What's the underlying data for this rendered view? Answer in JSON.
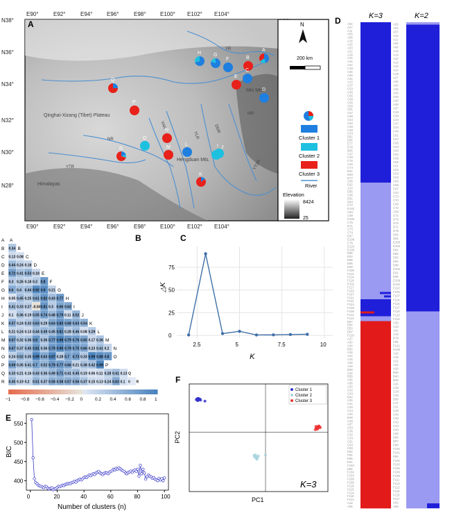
{
  "panel_labels": {
    "a": "A",
    "b": "B",
    "c": "C",
    "d": "D",
    "e": "E",
    "f": "F"
  },
  "map": {
    "top_ticks": [
      "E90°",
      "E92°",
      "E94°",
      "E96°",
      "E98°",
      "E100°",
      "E102°",
      "E104°"
    ],
    "bottom_ticks": [
      "E90°",
      "E92°",
      "E94°",
      "E96°",
      "E98°",
      "E100°",
      "E102°",
      "E104°"
    ],
    "left_ticks": [
      "N38°",
      "N36°",
      "N34°",
      "N32°",
      "N30°",
      "N28°"
    ],
    "right_ticks": [
      "N38°",
      "N36°",
      "N34°",
      "N32°",
      "N30°",
      "N28°"
    ],
    "place_names": [
      "Qinghai-Xizang (Tibet) Plateau",
      "Himalayas",
      "Hengduan Mts.",
      "Min Mts.",
      "NR",
      "YTR",
      "MR",
      "YR",
      "DDR",
      "YLR",
      "YAR",
      "YTZR"
    ],
    "scale_label": "200 km",
    "north": "N",
    "legend": {
      "cluster1": "Cluster 1",
      "cluster2": "Cluster 2",
      "cluster3": "Cluster 3",
      "river": "River",
      "elevation": "Elevation",
      "elev_max": "8424",
      "elev_min": "25"
    },
    "sites": [
      {
        "label": "A",
        "c1": 0.45,
        "c2": 0.2,
        "c3": 0.35
      },
      {
        "label": "B",
        "c1": 0.0,
        "c2": 0.0,
        "c3": 1.0
      },
      {
        "label": "C",
        "c1": 1.0,
        "c2": 0.0,
        "c3": 0.0
      },
      {
        "label": "D",
        "c1": 1.0,
        "c2": 0.0,
        "c3": 0.0
      },
      {
        "label": "E",
        "c1": 0.0,
        "c2": 0.0,
        "c3": 1.0
      },
      {
        "label": "F",
        "c1": 1.0,
        "c2": 0.0,
        "c3": 0.0
      },
      {
        "label": "G",
        "c1": 0.8,
        "c2": 0.2,
        "c3": 0.0
      },
      {
        "label": "H",
        "c1": 0.7,
        "c2": 0.3,
        "c3": 0.0
      },
      {
        "label": "I",
        "c1": 0.0,
        "c2": 1.0,
        "c3": 0.0
      },
      {
        "label": "J",
        "c1": 0.0,
        "c2": 1.0,
        "c3": 0.0
      },
      {
        "label": "K",
        "c1": 0.15,
        "c2": 0.0,
        "c3": 0.85
      },
      {
        "label": "L",
        "c1": 1.0,
        "c2": 0.0,
        "c3": 0.0
      },
      {
        "label": "M",
        "c1": 0.0,
        "c2": 0.0,
        "c3": 1.0
      },
      {
        "label": "N",
        "c1": 0.0,
        "c2": 0.0,
        "c3": 1.0
      },
      {
        "label": "O",
        "c1": 0.0,
        "c2": 1.0,
        "c3": 0.0
      },
      {
        "label": "P",
        "c1": 0.0,
        "c2": 0.0,
        "c3": 1.0
      },
      {
        "label": "Q",
        "c1": 0.25,
        "c2": 0.0,
        "c3": 0.75
      },
      {
        "label": "R",
        "c1": 0.2,
        "c2": 0.1,
        "c3": 0.7
      }
    ]
  },
  "fst": {
    "labels": [
      "A",
      "B",
      "C",
      "D",
      "E",
      "F",
      "G",
      "H",
      "I",
      "J",
      "K",
      "L",
      "M",
      "N",
      "O",
      "P",
      "Q",
      "R"
    ],
    "rows": [
      [],
      [
        "0.34"
      ],
      [
        "0.13",
        "0.08"
      ],
      [
        "0.44",
        "0.24",
        "0.18"
      ],
      [
        "0.72",
        "0.41",
        "0.53",
        "0.18"
      ],
      [
        "0.3",
        "0.26",
        "0.18",
        "0.3",
        "0.8"
      ],
      [
        "0.6",
        "0.4",
        "0.44",
        "0.92",
        "0.9",
        "0.21"
      ],
      [
        "0.05",
        "0.45",
        "0.25",
        "0.61",
        "0.82",
        "0.43",
        "0.77"
      ],
      [
        "0.41",
        "0.33",
        "0.27",
        "-0.04",
        "0.81",
        "0.3",
        "0.66",
        "0.62"
      ],
      [
        "0.1",
        "0.36",
        "0.19",
        "0.55",
        "0.74",
        "0.48",
        "0.79",
        "0.11",
        "0.52"
      ],
      [
        "0.57",
        "0.24",
        "0.33",
        "0.63",
        "0.29",
        "0.64",
        "0.83",
        "0.68",
        "0.63",
        "0.54"
      ],
      [
        "0.21",
        "0.24",
        "0.13",
        "0.44",
        "0.49",
        "0.45",
        "0.81",
        "0.28",
        "0.46",
        "0.08",
        "0.29"
      ],
      [
        "0.67",
        "0.32",
        "0.36",
        "0.8",
        "0.36",
        "0.77",
        "0.98",
        "0.79",
        "0.76",
        "0.65",
        "0.17",
        "0.36"
      ],
      [
        "0.67",
        "0.37",
        "0.45",
        "0.81",
        "0.36",
        "0.79",
        "0.90",
        "0.79",
        "0.75",
        "0.66",
        "0.23",
        "0.41",
        "0.2"
      ],
      [
        "0.24",
        "0.52",
        "0.35",
        "0.99",
        "0.63",
        "0.97",
        "0.28",
        "0.7",
        "0.73",
        "0.33",
        "0.99",
        "0.88",
        "0.8"
      ],
      [
        "0.69",
        "0.35",
        "0.41",
        "0.7",
        "0.52",
        "0.79",
        "0.77",
        "0.66",
        "0.21",
        "0.38",
        "0.42",
        "0.99"
      ],
      [
        "0.33",
        "0.21",
        "0.16",
        "0.43",
        "0.36",
        "0.49",
        "0.71",
        "0.41",
        "0.45",
        "0.19",
        "0.06",
        "0.11",
        "0.28",
        "0.41",
        "0.13",
        "Q"
      ],
      [
        "0.45",
        "0.19",
        "0.2",
        "0.51",
        "0.37",
        "0.58",
        "0.58",
        "0.57",
        "0.56",
        "0.37",
        "0.15",
        "0.13",
        "0.24",
        "0.63",
        "0.1",
        "0",
        "R"
      ]
    ],
    "colorbar_ticks": [
      "−1",
      "−0.8",
      "−0.6",
      "−0.4",
      "−0.2",
      "0",
      "0.2",
      "0.4",
      "0.6",
      "0.8",
      "1"
    ]
  },
  "chart_data": [
    {
      "type": "line",
      "panel": "C",
      "xlabel": "K",
      "ylabel": "△K",
      "x": [
        2,
        3,
        4,
        5,
        6,
        7,
        8,
        9
      ],
      "y": [
        0.5,
        90,
        2,
        4.5,
        0.5,
        0.6,
        1,
        1.2
      ],
      "xticks": [
        "2.5",
        "5",
        "7.5",
        "10"
      ],
      "yticks": [
        "0",
        "25",
        "50",
        "75"
      ],
      "xlim": [
        1.3,
        10.5
      ],
      "ylim": [
        -3,
        98
      ],
      "grid": true
    },
    {
      "type": "line",
      "panel": "E",
      "xlabel": "Number of clusters (n)",
      "ylabel": "BIC",
      "xticks": [
        "0",
        "20",
        "40",
        "60",
        "80",
        "100"
      ],
      "yticks": [
        "400",
        "450",
        "500",
        "550"
      ],
      "xlim": [
        -3,
        103
      ],
      "ylim": [
        375,
        575
      ],
      "x": [
        1,
        2,
        3,
        4,
        5,
        6,
        7,
        8,
        9,
        10,
        11,
        12,
        13,
        14,
        15,
        16,
        17,
        18,
        19,
        20,
        21,
        22,
        23,
        24,
        25,
        26,
        27,
        28,
        29,
        30,
        31,
        32,
        33,
        34,
        35,
        36,
        37,
        38,
        39,
        40,
        41,
        42,
        43,
        44,
        45,
        46,
        47,
        48,
        49,
        50,
        51,
        52,
        53,
        54,
        55,
        56,
        57,
        58,
        59,
        60,
        61,
        62,
        63,
        64,
        65,
        66,
        67,
        68,
        69,
        70,
        71,
        72,
        73,
        74,
        75,
        76,
        77,
        78,
        79,
        80,
        81,
        82,
        83,
        84,
        85,
        86,
        87,
        88,
        89,
        90,
        91,
        92,
        93,
        94,
        95,
        96,
        97,
        98,
        99,
        100
      ],
      "y": [
        560,
        460,
        405,
        395,
        392,
        388,
        386,
        385,
        383,
        382,
        385,
        384,
        380,
        378,
        380,
        381,
        376,
        378,
        379,
        382,
        385,
        384,
        386,
        388,
        387,
        390,
        391,
        392,
        393,
        392,
        395,
        396,
        398,
        396,
        400,
        402,
        404,
        402,
        405,
        408,
        410,
        408,
        412,
        415,
        413,
        416,
        418,
        416,
        420,
        422,
        424,
        420,
        418,
        416,
        419,
        421,
        420,
        418,
        422,
        424,
        426,
        430,
        428,
        432,
        430,
        434,
        431,
        428,
        426,
        424,
        420,
        418,
        421,
        423,
        425,
        422,
        426,
        428,
        424,
        430,
        412,
        440,
        418,
        430,
        420,
        404,
        410,
        415,
        412,
        410,
        406,
        408,
        404,
        402,
        400,
        406,
        402,
        405,
        400,
        407
      ]
    },
    {
      "type": "scatter",
      "panel": "F",
      "xlabel": "PC1",
      "ylabel": "PC2",
      "series": [
        {
          "name": "Cluster 1",
          "color": "#3333cc",
          "points": [
            [
              -0.95,
              0.62
            ],
            [
              -0.93,
              0.6
            ],
            [
              -0.94,
              0.63
            ],
            [
              -0.96,
              0.61
            ],
            [
              -0.92,
              0.61
            ],
            [
              -0.94,
              0.59
            ],
            [
              -0.91,
              0.62
            ],
            [
              -0.95,
              0.6
            ],
            [
              -0.93,
              0.63
            ],
            [
              -0.9,
              0.6
            ],
            [
              -0.84,
              0.58
            ]
          ]
        },
        {
          "name": "Cluster 2",
          "color": "#a8d4da",
          "points": [
            [
              -0.14,
              -0.42
            ],
            [
              -0.12,
              -0.45
            ],
            [
              -0.13,
              -0.48
            ],
            [
              -0.11,
              -0.47
            ],
            [
              -0.16,
              -0.43
            ],
            [
              -0.12,
              -0.5
            ],
            [
              -0.1,
              -0.44
            ],
            [
              -0.15,
              -0.46
            ],
            [
              0.0,
              -0.42
            ]
          ]
        },
        {
          "name": "Cluster 3",
          "color": "#ee3333",
          "points": [
            [
              0.7,
              0.08
            ],
            [
              0.72,
              0.1
            ],
            [
              0.74,
              0.09
            ],
            [
              0.73,
              0.11
            ],
            [
              0.71,
              0.07
            ],
            [
              0.75,
              0.1
            ],
            [
              0.72,
              0.06
            ],
            [
              0.74,
              0.12
            ],
            [
              0.69,
              0.05
            ],
            [
              0.76,
              0.09
            ],
            [
              0.73,
              0.08
            ],
            [
              0.7,
              0.11
            ]
          ]
        }
      ],
      "k_label": "K=3"
    },
    {
      "type": "bar",
      "panel": "D",
      "stacked": true,
      "k_labels": [
        "K=3",
        "K=2"
      ],
      "groups": [
        {
          "k": "K=3",
          "segments": [
            {
              "color": "#1f1fd9",
              "fraction": 0.33
            },
            {
              "color": "#9a9af2",
              "fraction": 0.24
            },
            {
              "color": "#1f1fd9",
              "fraction": 0.035
            },
            {
              "color": "#9a9af2",
              "fraction": 0.01
            },
            {
              "color": "#e21a1a",
              "fraction": 0.385
            }
          ]
        },
        {
          "k": "K=2",
          "segments": [
            {
              "color": "#9a9af2",
              "fraction": 0.005
            },
            {
              "color": "#1f1fd9",
              "fraction": 0.59
            },
            {
              "color": "#9a9af2",
              "fraction": 0.405
            }
          ]
        }
      ]
    }
  ],
  "structure": {
    "left_labels": [
      "A04",
      "A07",
      "A11",
      "A05",
      "A08",
      "A14",
      "A25",
      "A33",
      "A21",
      "A18",
      "A24",
      "A16",
      "A22",
      "C48",
      "A26",
      "A28",
      "A31",
      "A13",
      "C37",
      "C53",
      "C46",
      "C56",
      "C58",
      "C55",
      "C50",
      "C61",
      "C57",
      "C65",
      "C64",
      "C62",
      "C46",
      "C49",
      "C43",
      "E82",
      "E85",
      "E77",
      "D76",
      "B35",
      "C47",
      "C29",
      "C76",
      "A19",
      "C74",
      "E94",
      "D80",
      "D77",
      "C85",
      "E92",
      "A10",
      "E95",
      "C96",
      "E91",
      "D84",
      "C72",
      "E102",
      "C83",
      "C69",
      "E105",
      "C75",
      "D71",
      "C73",
      "C74",
      "E97",
      "E108",
      "C76",
      "E120",
      "E100",
      "E89",
      "E93",
      "E98",
      "E96",
      "E99",
      "F109",
      "F112",
      "F114",
      "F119",
      "E101",
      "F117",
      "F103",
      "F107",
      "F101",
      "F111",
      "F104",
      "F109",
      "F106",
      "F114",
      "F113",
      "E87",
      "E84",
      "E83",
      "D87",
      "F120",
      "A27",
      "A30",
      "A34",
      "B30",
      "A16",
      "A22",
      "A15",
      "A28",
      "A29",
      "B39",
      "A32",
      "B36",
      "A36",
      "A38",
      "A33",
      "C42",
      "C43",
      "B40",
      "A25",
      "C41",
      "C45",
      "C44",
      "A20",
      "B48",
      "C45",
      "A37",
      "C53",
      "C36",
      "C32",
      "C34",
      "C51",
      "C54",
      "C50",
      "E92",
      "F93",
      "E95",
      "E91",
      "F103",
      "E96",
      "F104",
      "F103",
      "F108",
      "F106",
      "F118",
      "F115",
      "F114",
      "F116",
      "F121",
      "A18",
      "A06"
    ],
    "right_labels": [
      "A20",
      "A04",
      "A07",
      "A15",
      "A11",
      "A05",
      "A08",
      "A13",
      "A14",
      "A22",
      "A12",
      "A19",
      "A24",
      "C29",
      "A27",
      "A25",
      "A26",
      "A33",
      "A35",
      "C50",
      "A28",
      "A38",
      "A37",
      "C48",
      "C58",
      "C43",
      "C47",
      "C54",
      "C49",
      "C61",
      "C57",
      "C65",
      "C63",
      "C60",
      "C62",
      "C59",
      "C55",
      "C51",
      "C52",
      "C54",
      "C53",
      "C56",
      "C68",
      "C67",
      "C64",
      "C73",
      "C70",
      "C66",
      "C72",
      "C80",
      "C71",
      "D75",
      "D76",
      "D71",
      "D79",
      "D82",
      "D81",
      "E100",
      "E103",
      "E84",
      "E85",
      "E93",
      "E92",
      "E88",
      "E102",
      "E91",
      "E99",
      "E109",
      "E116",
      "F110",
      "F105",
      "F107",
      "F114",
      "F115",
      "F117",
      "F118",
      "F120",
      "F119",
      "A39",
      "C32",
      "A31",
      "A19",
      "D78",
      "F85",
      "F121",
      "E100",
      "A16",
      "A18",
      "A21",
      "A34",
      "A28",
      "B35",
      "B40",
      "B45",
      "A16",
      "C26",
      "C28",
      "C36",
      "B39",
      "C37",
      "C41",
      "C35",
      "C45",
      "C30",
      "C42",
      "C44",
      "C40",
      "A29",
      "E96",
      "E97",
      "E98",
      "F104",
      "F101",
      "E95",
      "F102",
      "F103",
      "F105",
      "F108",
      "F109",
      "F111",
      "F113",
      "F112",
      "F116",
      "F115",
      "F117",
      "A03",
      "A06"
    ]
  }
}
